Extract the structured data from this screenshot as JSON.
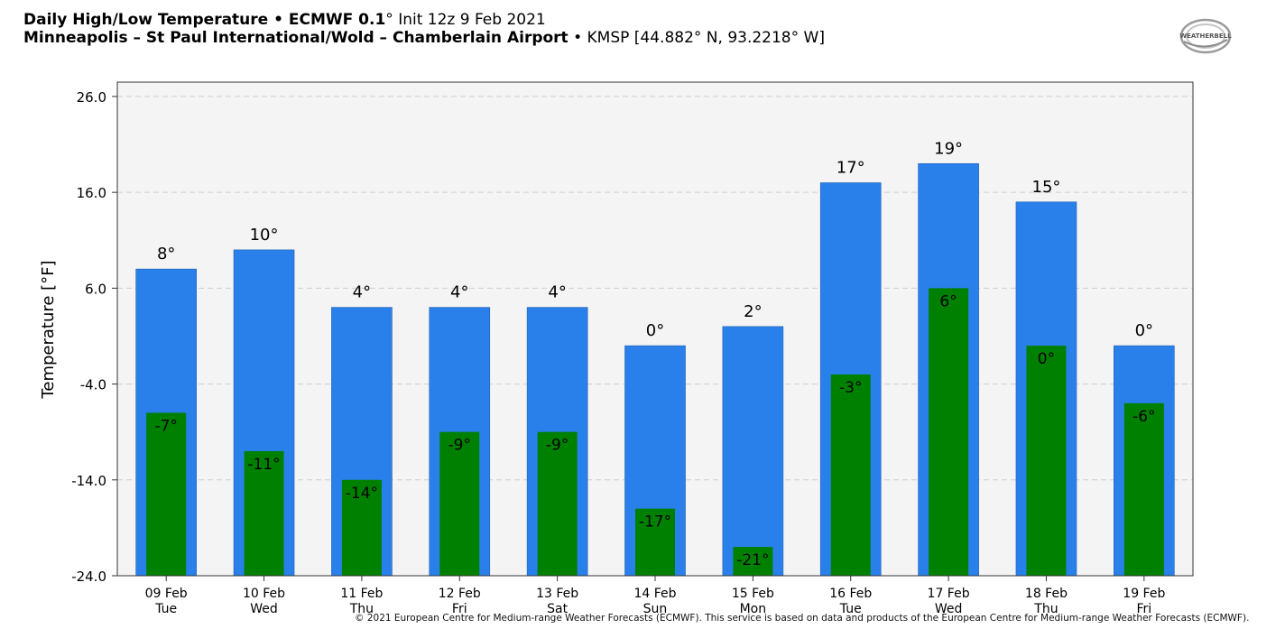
{
  "header": {
    "title_bold": "Daily High/Low Temperature • ECMWF 0.1",
    "title_deg": "°",
    "title_rest": " Init 12z 9 Feb 2021",
    "subtitle_bold": "Minneapolis – St Paul International/Wold – Chamberlain Airport",
    "subtitle_rest": " • KMSP [44.882° N, 93.2218° W]"
  },
  "logo": {
    "text": "WEATHERBELL",
    "icon": "weatherbell-logo"
  },
  "copyright": "© 2021 European Centre for Medium-range Weather Forecasts (ECMWF). This service is based on data and products of the European Centre for Medium-range Weather Forecasts (ECMWF).",
  "colors": {
    "high": "#2a80ea",
    "low": "#008000",
    "plot_bg": "#f4f4f4",
    "grid": "#cfcfcf"
  },
  "chart_data": {
    "type": "bar",
    "ylabel": "Temperature [°F]",
    "ylim": [
      -24,
      27.5
    ],
    "yticks": [
      "26.0",
      "16.0",
      "6.0",
      "-4.0",
      "-14.0",
      "-24.0"
    ],
    "grid": true,
    "categories": [
      {
        "date": "09 Feb",
        "day": "Tue"
      },
      {
        "date": "10 Feb",
        "day": "Wed"
      },
      {
        "date": "11 Feb",
        "day": "Thu"
      },
      {
        "date": "12 Feb",
        "day": "Fri"
      },
      {
        "date": "13 Feb",
        "day": "Sat"
      },
      {
        "date": "14 Feb",
        "day": "Sun"
      },
      {
        "date": "15 Feb",
        "day": "Mon"
      },
      {
        "date": "16 Feb",
        "day": "Tue"
      },
      {
        "date": "17 Feb",
        "day": "Wed"
      },
      {
        "date": "18 Feb",
        "day": "Thu"
      },
      {
        "date": "19 Feb",
        "day": "Fri"
      }
    ],
    "series": [
      {
        "name": "High",
        "values": [
          8,
          10,
          4,
          4,
          4,
          0,
          2,
          17,
          19,
          15,
          0
        ],
        "labels": [
          "8°",
          "10°",
          "4°",
          "4°",
          "4°",
          "0°",
          "2°",
          "17°",
          "19°",
          "15°",
          "0°"
        ]
      },
      {
        "name": "Low",
        "values": [
          -7,
          -11,
          -14,
          -9,
          -9,
          -17,
          -21,
          -3,
          6,
          0,
          -6
        ],
        "labels": [
          "-7°",
          "-11°",
          "-14°",
          "-9°",
          "-9°",
          "-17°",
          "-21°",
          "-3°",
          "6°",
          "0°",
          "-6°"
        ]
      }
    ]
  }
}
